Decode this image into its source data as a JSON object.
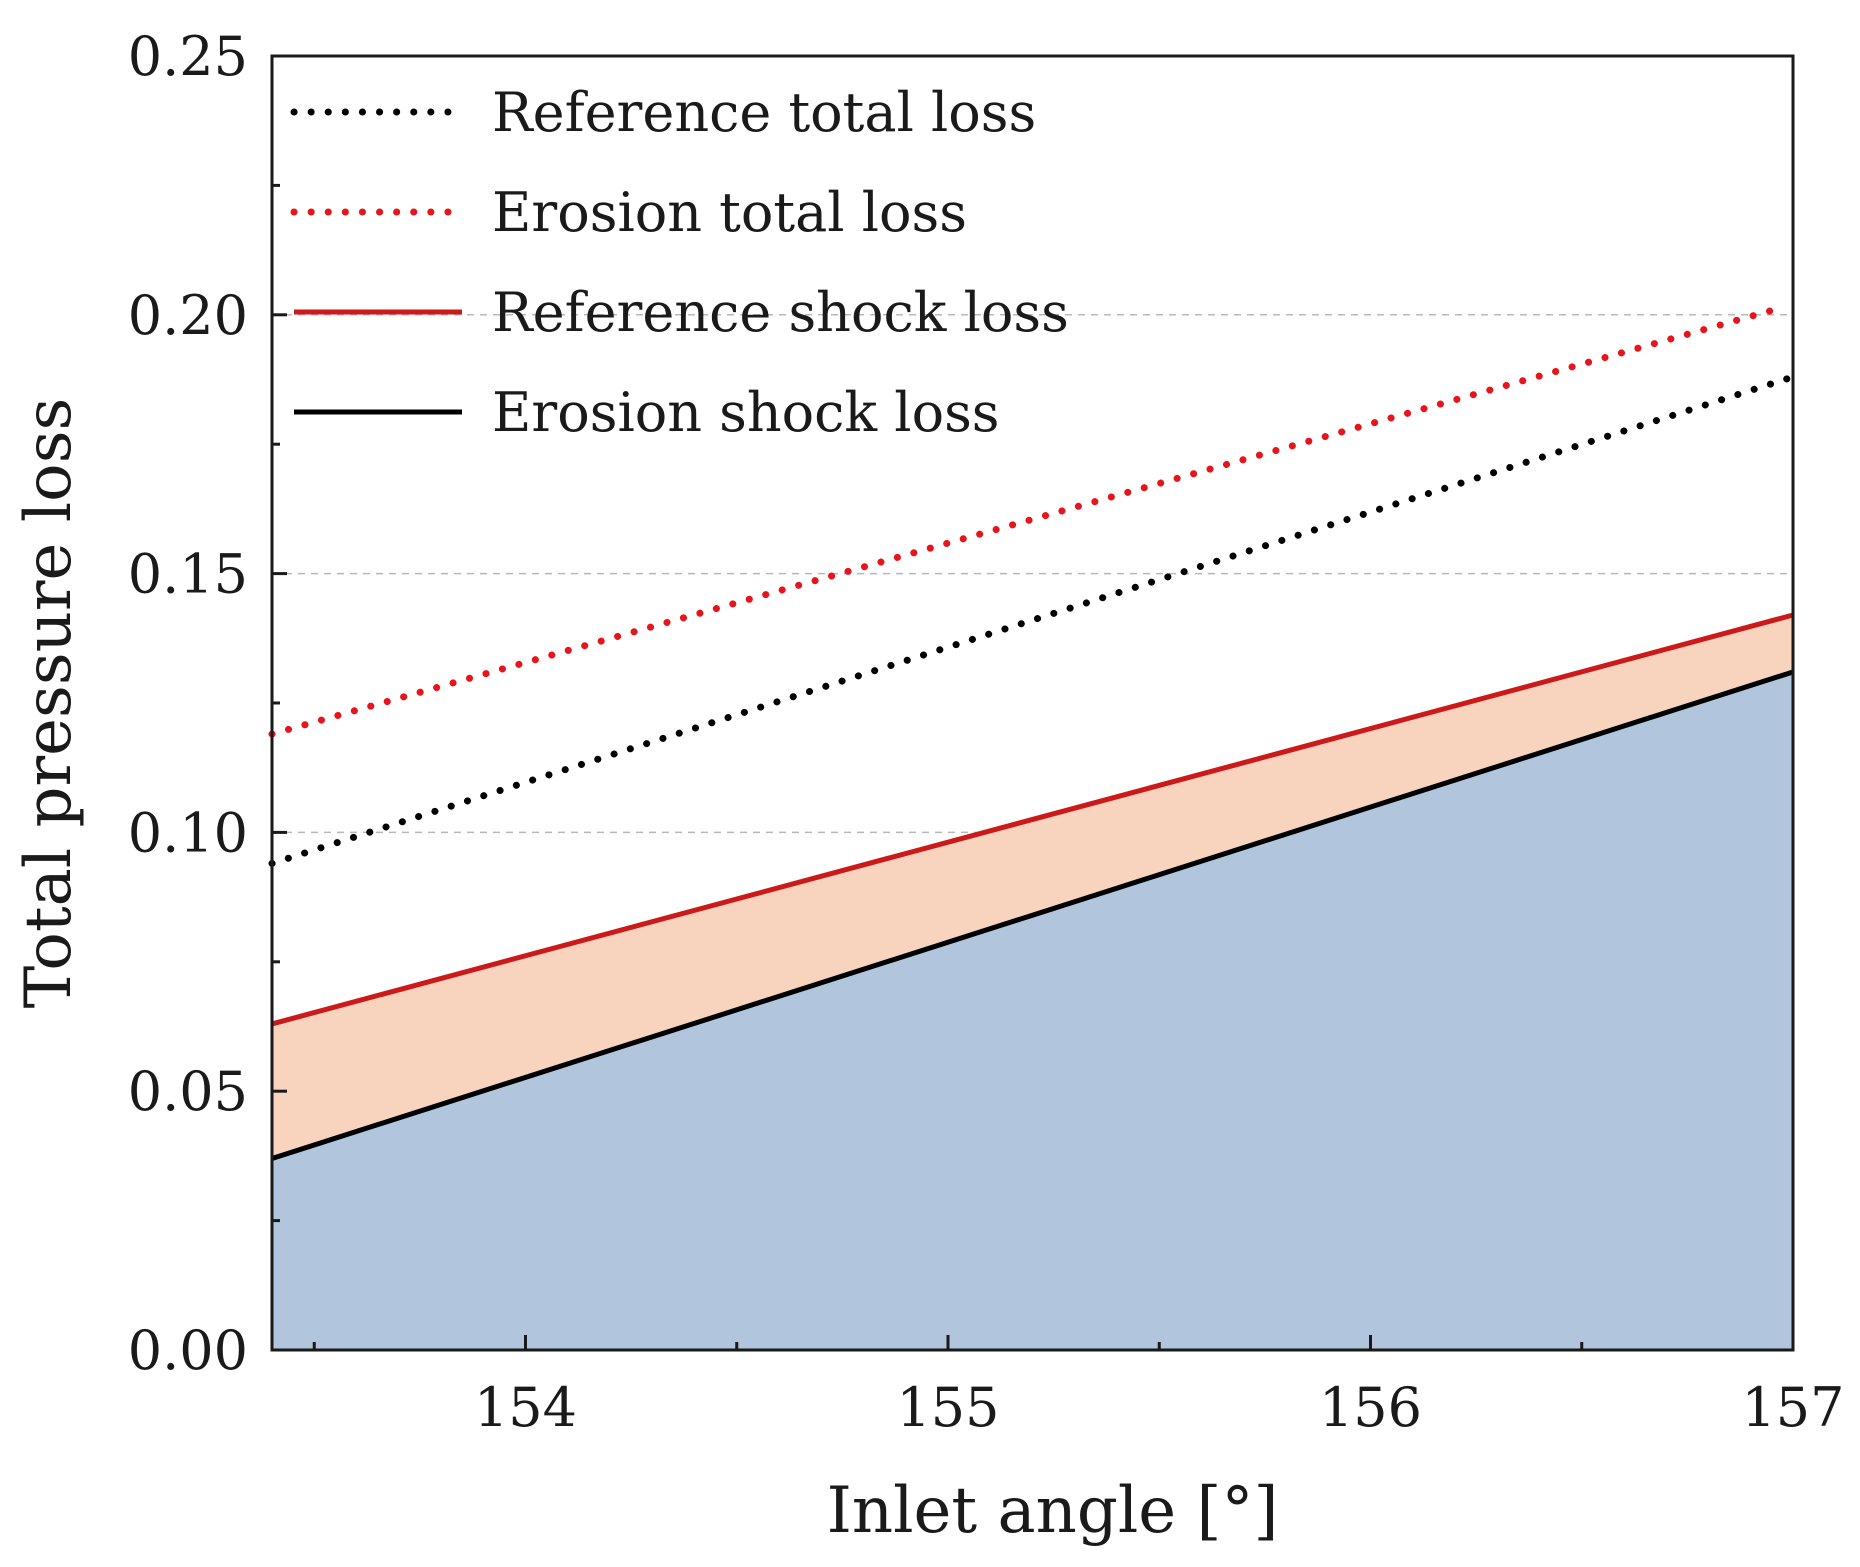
{
  "chart_data": {
    "type": "line",
    "title": "",
    "xlabel": "Inlet angle [°]",
    "ylabel": "Total pressure loss",
    "xlim": [
      153.4,
      157.0
    ],
    "ylim": [
      0.0,
      0.25
    ],
    "xticks": [
      154,
      155,
      156,
      157
    ],
    "xtick_labels": [
      "154",
      "155",
      "156",
      "157"
    ],
    "yticks": [
      0.0,
      0.05,
      0.1,
      0.15,
      0.2,
      0.25
    ],
    "ytick_labels": [
      "0.00",
      "0.05",
      "0.10",
      "0.15",
      "0.20",
      "0.25"
    ],
    "grid": "y-dashed",
    "legend_position": "top-left",
    "x": [
      153.4,
      157.0
    ],
    "series": [
      {
        "name": "Reference total loss",
        "values": [
          0.094,
          0.188
        ],
        "color": "#000000",
        "style": "dotted"
      },
      {
        "name": "Erosion total loss",
        "values": [
          0.119,
          0.202
        ],
        "color": "#e8141b",
        "style": "dotted"
      },
      {
        "name": "Reference shock loss",
        "values": [
          0.063,
          0.142
        ],
        "color": "#cc1a1a",
        "style": "solid"
      },
      {
        "name": "Erosion shock loss",
        "values": [
          0.037,
          0.131
        ],
        "color": "#000000",
        "style": "solid"
      }
    ],
    "fills": [
      {
        "between": [
          "Erosion shock loss",
          "Reference shock loss"
        ],
        "color": "#f8d4be"
      },
      {
        "between": [
          "baseline",
          "Erosion shock loss"
        ],
        "color": "#b1c6dc"
      }
    ],
    "series_end_x": [
      157.0,
      156.95,
      157.0,
      157.0
    ]
  }
}
